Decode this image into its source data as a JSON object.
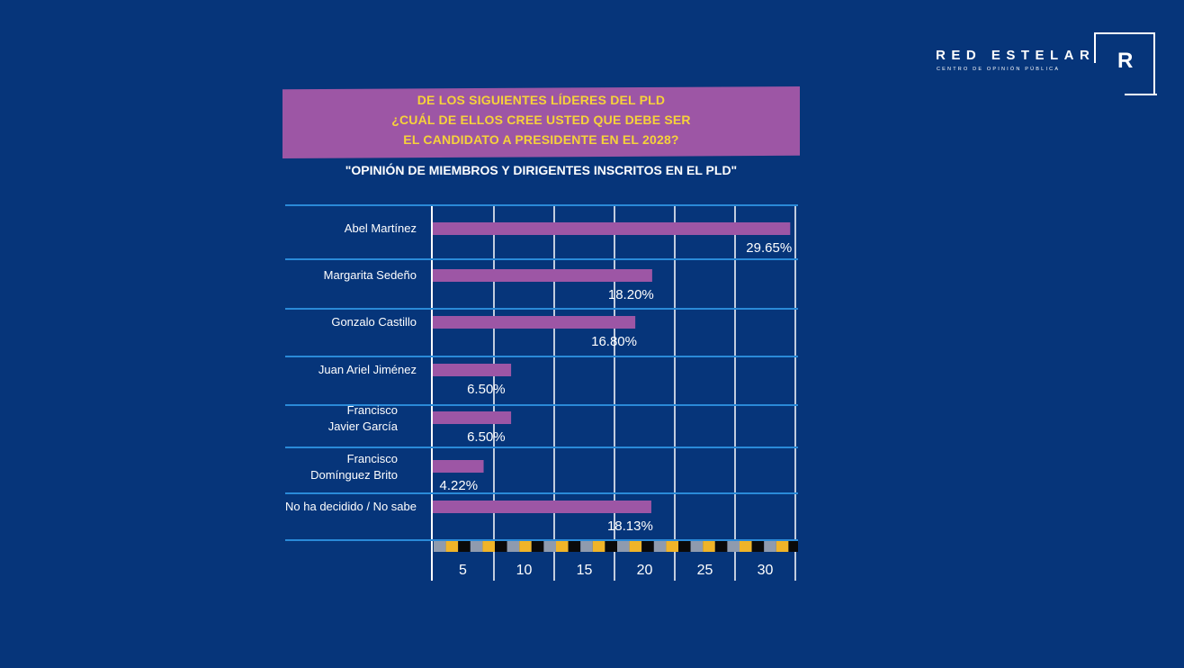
{
  "brand": {
    "name": "RED ESTELAR",
    "tagline": "CENTRO DE OPINIÓN PÚBLICA",
    "mark": "R"
  },
  "header": {
    "question_lines": [
      "DE LOS SIGUIENTES LÍDERES DEL PLD",
      "¿CUÁL DE ELLOS CREE USTED QUE DEBE SER",
      "EL CANDIDATO A PRESIDENTE EN EL 2028?"
    ],
    "subtitle": "\"OPINIÓN DE MIEMBROS Y DIRIGENTES INSCRITOS EN EL PLD\""
  },
  "colors": {
    "background": "#06357a",
    "bar": "#9d56a5",
    "banner_text": "#f6d23a",
    "grid": "#2a8ad8",
    "axis": "#ffffff",
    "stripe": [
      "#8f9bae",
      "#f0b428",
      "#0a0a0a"
    ]
  },
  "chart_data": {
    "type": "bar",
    "orientation": "horizontal",
    "categories": [
      [
        "Abel Martínez"
      ],
      [
        "Margarita Sedeño"
      ],
      [
        "Gonzalo Castillo"
      ],
      [
        "Juan Ariel Jiménez"
      ],
      [
        "Francisco",
        "Javier García"
      ],
      [
        "Francisco",
        "Domínguez Brito"
      ],
      [
        "No ha decidido / No sabe"
      ]
    ],
    "values": [
      29.65,
      18.2,
      16.8,
      6.5,
      6.5,
      4.22,
      18.13
    ],
    "value_labels": [
      "29.65%",
      "18.20%",
      "16.80%",
      "6.50%",
      "6.50%",
      "4.22%",
      "18.13%"
    ],
    "x_ticks": [
      5,
      10,
      15,
      20,
      25,
      30
    ],
    "xlim": [
      0,
      30
    ],
    "grid": true,
    "title": "",
    "xlabel": "",
    "ylabel": ""
  }
}
